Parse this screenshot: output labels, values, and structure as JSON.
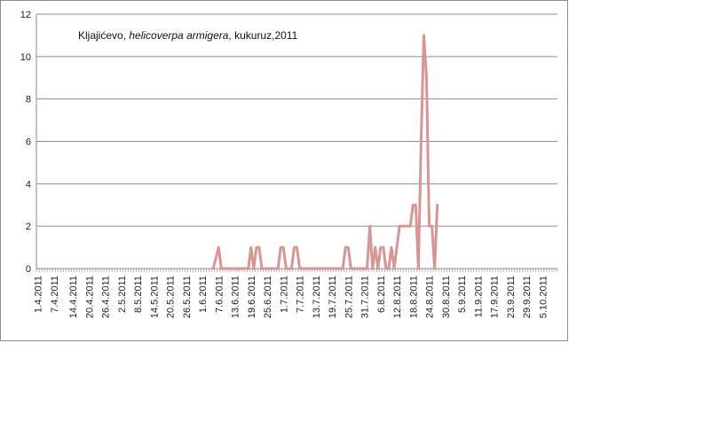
{
  "chart_data": {
    "type": "line",
    "title": {
      "prefix": "Kljajićevo, ",
      "italic": "helicoverpa armigera",
      "suffix": ", kukuruz,2011"
    },
    "xlabel": "",
    "ylabel": "",
    "ylim": [
      0,
      12
    ],
    "yticks": [
      0,
      2,
      4,
      6,
      8,
      10,
      12
    ],
    "grid": true,
    "legend": "none",
    "line_color": "#d99594",
    "x_start": "1.4.2011",
    "x_end": "10.10.2011",
    "xtick_labels": [
      "1.4.2011",
      "7.4.2011",
      "14.4.2011",
      "20.4.2011",
      "26.4.2011",
      "2.5.2011",
      "8.5.2011",
      "14.5.2011",
      "20.5.2011",
      "26.5.2011",
      "1.6.2011",
      "7.6.2011",
      "13.6.2011",
      "19.6.2011",
      "25.6.2011",
      "1.7.2011",
      "7.7.2011",
      "13.7.2011",
      "19.7.2011",
      "25.7.2011",
      "31.7.2011",
      "6.8.2011",
      "12.8.2011",
      "18.8.2011",
      "24.8.2011",
      "30.8.2011",
      "5.9.2011",
      "11.9.2011",
      "17.9.2011",
      "23.9.2011",
      "29.9.2011",
      "5.10.2011"
    ],
    "series": [
      {
        "points": [
          [
            "5.6.2011",
            0
          ],
          [
            "7.6.2011",
            1
          ],
          [
            "8.6.2011",
            0
          ],
          [
            "18.6.2011",
            0
          ],
          [
            "19.6.2011",
            1
          ],
          [
            "20.6.2011",
            0
          ],
          [
            "21.6.2011",
            1
          ],
          [
            "22.6.2011",
            1
          ],
          [
            "23.6.2011",
            0
          ],
          [
            "29.6.2011",
            0
          ],
          [
            "30.6.2011",
            1
          ],
          [
            "1.7.2011",
            1
          ],
          [
            "2.7.2011",
            0
          ],
          [
            "4.7.2011",
            0
          ],
          [
            "5.7.2011",
            1
          ],
          [
            "6.7.2011",
            1
          ],
          [
            "7.7.2011",
            0
          ],
          [
            "23.7.2011",
            0
          ],
          [
            "24.7.2011",
            1
          ],
          [
            "25.7.2011",
            1
          ],
          [
            "26.7.2011",
            0
          ],
          [
            "1.8.2011",
            0
          ],
          [
            "2.8.2011",
            2
          ],
          [
            "3.8.2011",
            0
          ],
          [
            "4.8.2011",
            1
          ],
          [
            "5.8.2011",
            0
          ],
          [
            "6.8.2011",
            1
          ],
          [
            "7.8.2011",
            1
          ],
          [
            "8.8.2011",
            0
          ],
          [
            "9.8.2011",
            0
          ],
          [
            "10.8.2011",
            1
          ],
          [
            "11.8.2011",
            0
          ],
          [
            "13.8.2011",
            2
          ],
          [
            "15.8.2011",
            2
          ],
          [
            "16.8.2011",
            2
          ],
          [
            "17.8.2011",
            2
          ],
          [
            "18.8.2011",
            3
          ],
          [
            "19.8.2011",
            3
          ],
          [
            "20.8.2011",
            0
          ],
          [
            "21.8.2011",
            6
          ],
          [
            "22.8.2011",
            11
          ],
          [
            "23.8.2011",
            9
          ],
          [
            "24.8.2011",
            2
          ],
          [
            "25.8.2011",
            2
          ],
          [
            "26.8.2011",
            0
          ],
          [
            "27.8.2011",
            3
          ]
        ]
      }
    ]
  }
}
